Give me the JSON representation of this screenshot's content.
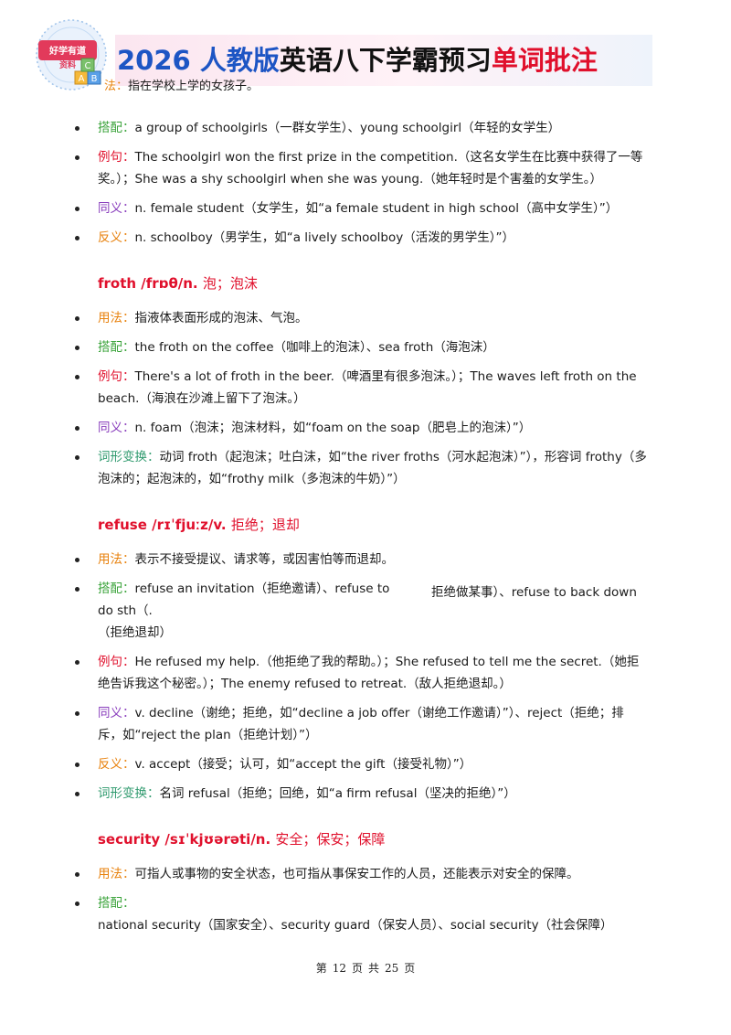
{
  "header": {
    "logo_text": "好学有道资料",
    "logo_blocks": [
      "A",
      "B",
      "C"
    ],
    "title_parts": [
      {
        "text": "2026 ",
        "tone": "blue"
      },
      {
        "text": "人教版",
        "tone": "blue"
      },
      {
        "text": "英语八下学霸预习",
        "tone": "black"
      },
      {
        "text": "单词批注",
        "tone": "red"
      }
    ],
    "top_usage_label": "法：",
    "top_usage_text": "指在学校上学的女孩子。"
  },
  "schoolgirl": {
    "collocation_label": "搭配：",
    "collocation_text": "a group of schoolgirls（一群女学生）、young schoolgirl（年轻的女学生）",
    "example_label": "例句：",
    "example_text": "The schoolgirl won the first prize in the competition.（这名女学生在比赛中获得了一等奖。）；She was a shy schoolgirl when she was young.（她年轻时是个害羞的女学生。）",
    "synonym_label": "同义：",
    "synonym_text": "n. female student（女学生，如“a female student in high school（高中女学生）”）",
    "antonym_label": "反义：",
    "antonym_text": "n. schoolboy（男学生，如“a lively schoolboy（活泼的男学生）”）"
  },
  "froth": {
    "headword": "froth /frɒθ/n.",
    "meaning": "泡；泡沫",
    "usage_label": "用法：",
    "usage_text": "指液体表面形成的泡沫、气泡。",
    "collocation_label": "搭配：",
    "collocation_text": "the froth on the coffee（咖啡上的泡沫）、sea froth（海泡沫）",
    "example_label": "例句：",
    "example_text": "There's a lot of froth in the beer.（啤酒里有很多泡沫。）；The waves left froth on the beach.（海浪在沙滩上留下了泡沫。）",
    "synonym_label": "同义：",
    "synonym_text": "n. foam（泡沫；泡沫材料，如“foam on the soap（肥皂上的泡沫）”）",
    "forms_label": "词形变换：",
    "forms_text": "动词 froth（起泡沫；吐白沫，如“the river froths（河水起泡沫）”），形容词 frothy（多泡沫的；起泡沫的，如“frothy milk（多泡沫的牛奶）”）"
  },
  "refuse": {
    "headword": "refuse /rɪˈfjuːz/v.",
    "meaning": "拒绝；退却",
    "usage_label": "用法：",
    "usage_text": "表示不接受提议、请求等，或因害怕等而退却。",
    "collocation_label": "搭配：",
    "collocation_left": "refuse an invitation（拒绝邀请）、refuse to do sth（.",
    "collocation_right": "拒绝做某事）、refuse to back down",
    "collocation_tail": "（拒绝退却）",
    "example_label": "例句：",
    "example_text": "He refused my help.（他拒绝了我的帮助。）；She refused to tell me the secret.（她拒绝告诉我这个秘密。）；The enemy refused to retreat.（敌人拒绝退却。）",
    "synonym_label": "同义：",
    "synonym_text": "v. decline（谢绝；拒绝，如“decline a job offer（谢绝工作邀请）”）、reject（拒绝；排斥，如“reject the plan（拒绝计划）”）",
    "antonym_label": "反义：",
    "antonym_text": "v. accept（接受；认可，如“accept the gift（接受礼物）”）",
    "forms_label": "词形变换：",
    "forms_text": "名词 refusal（拒绝；回绝，如“a firm refusal（坚决的拒绝）”）"
  },
  "security": {
    "headword": "security /sɪˈkjʊərəti/n.",
    "meaning": "安全；保安；保障",
    "usage_label": "用法：",
    "usage_text": "可指人或事物的安全状态，也可指从事保安工作的人员，还能表示对安全的保障。",
    "collocation_label": "搭配：",
    "collocation_text": "national security（国家安全）、security guard（保安人员）、social security（社会保障）"
  },
  "footer": {
    "prefix": "第",
    "page": "12",
    "mid1": "页",
    "mid2": "共",
    "total": "25",
    "suffix": "页"
  },
  "colors": {
    "headword_red": "#e0102c",
    "label_orange": "#e8820e",
    "label_green": "#3aa33a",
    "label_purple": "#8a3fbd",
    "title_blue": "#1d55c4"
  }
}
